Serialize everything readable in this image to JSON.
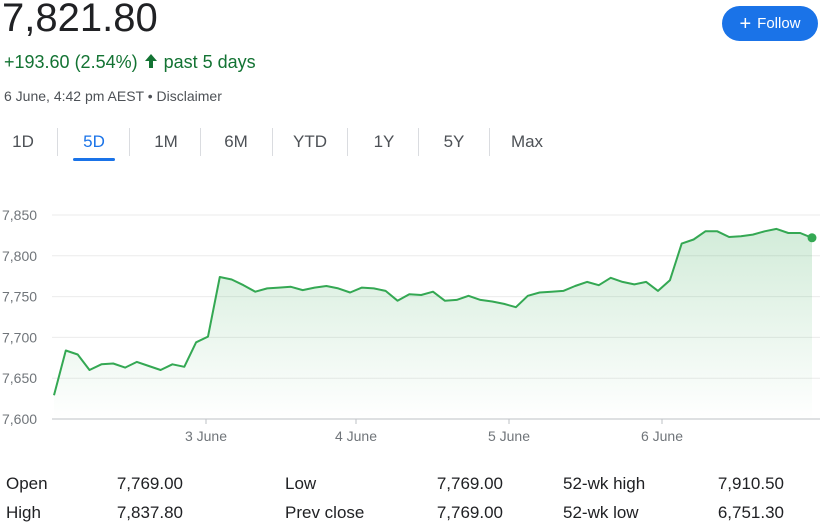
{
  "header": {
    "price": "7,821.80",
    "change": "+193.60 (2.54%)",
    "change_arrow": "🡑",
    "period": "past 5 days",
    "timestamp": "6 June, 4:42 pm AEST",
    "separator": "•",
    "disclaimer": "Disclaimer",
    "follow_label": "Follow",
    "follow_icon": "plus-icon",
    "accent_color": "#1a73e8",
    "positive_color": "#137333"
  },
  "tabs": [
    {
      "label": "1D",
      "active": false
    },
    {
      "label": "5D",
      "active": true
    },
    {
      "label": "1M",
      "active": false
    },
    {
      "label": "6M",
      "active": false
    },
    {
      "label": "YTD",
      "active": false
    },
    {
      "label": "1Y",
      "active": false
    },
    {
      "label": "5Y",
      "active": false
    },
    {
      "label": "Max",
      "active": false
    }
  ],
  "chart_data": {
    "type": "area",
    "title": "",
    "xlabel": "",
    "ylabel": "",
    "ylim": [
      7600,
      7860
    ],
    "y_ticks": [
      "7,850",
      "7,800",
      "7,750",
      "7,700",
      "7,650",
      "7,600"
    ],
    "x_ticks": [
      "3 June",
      "4 June",
      "5 June",
      "6 June"
    ],
    "grid": true,
    "line_color": "#34a853",
    "series": [
      {
        "values": [
          7629,
          7684,
          7679,
          7660,
          7667,
          7668,
          7663,
          7670,
          7665,
          7660,
          7667,
          7664,
          7694,
          7701,
          7774,
          7771,
          7764,
          7756,
          7760,
          7761,
          7762,
          7758,
          7761,
          7763,
          7760,
          7755,
          7761,
          7760,
          7757,
          7745,
          7753,
          7752,
          7756,
          7745,
          7746,
          7751,
          7746,
          7744,
          7741,
          7737,
          7751,
          7755,
          7756,
          7757,
          7763,
          7768,
          7764,
          7773,
          7768,
          7765,
          7768,
          7757,
          7770,
          7815,
          7820,
          7830,
          7830,
          7823,
          7824,
          7826,
          7830,
          7833,
          7828,
          7828,
          7822
        ]
      }
    ]
  },
  "stats": {
    "rows": [
      [
        {
          "label": "Open",
          "value": "7,769.00"
        },
        {
          "label": "Low",
          "value": "7,769.00"
        },
        {
          "label": "52-wk high",
          "value": "7,910.50"
        }
      ],
      [
        {
          "label": "High",
          "value": "7,837.80"
        },
        {
          "label": "Prev close",
          "value": "7,769.00"
        },
        {
          "label": "52-wk low",
          "value": "6,751.30"
        }
      ]
    ]
  }
}
